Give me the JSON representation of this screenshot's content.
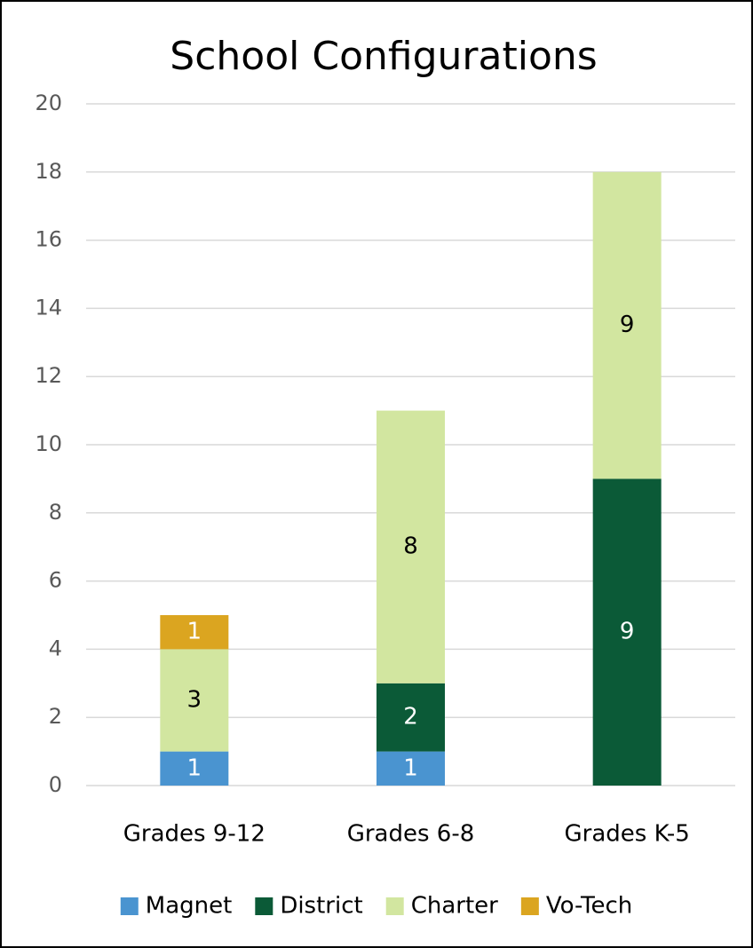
{
  "chart_data": {
    "type": "stacked_bar",
    "title": "School Configurations",
    "categories": [
      "Grades 9-12",
      "Grades 6-8",
      "Grades K-5"
    ],
    "series": [
      {
        "name": "Magnet",
        "color": "#4a94d0",
        "label_color": "#ffffff",
        "values": [
          1,
          1,
          null
        ]
      },
      {
        "name": "District",
        "color": "#0b5a37",
        "label_color": "#ffffff",
        "values": [
          null,
          2,
          9
        ]
      },
      {
        "name": "Charter",
        "color": "#d2e6a0",
        "label_color": "#000000",
        "values": [
          3,
          8,
          9
        ]
      },
      {
        "name": "Vo-Tech",
        "color": "#dba520",
        "label_color": "#ffffff",
        "values": [
          1,
          null,
          null
        ]
      }
    ],
    "ylim": [
      0,
      20
    ],
    "yticks": [
      0,
      2,
      4,
      6,
      8,
      10,
      12,
      14,
      16,
      18,
      20
    ],
    "grid": true,
    "legend": "bottom"
  }
}
